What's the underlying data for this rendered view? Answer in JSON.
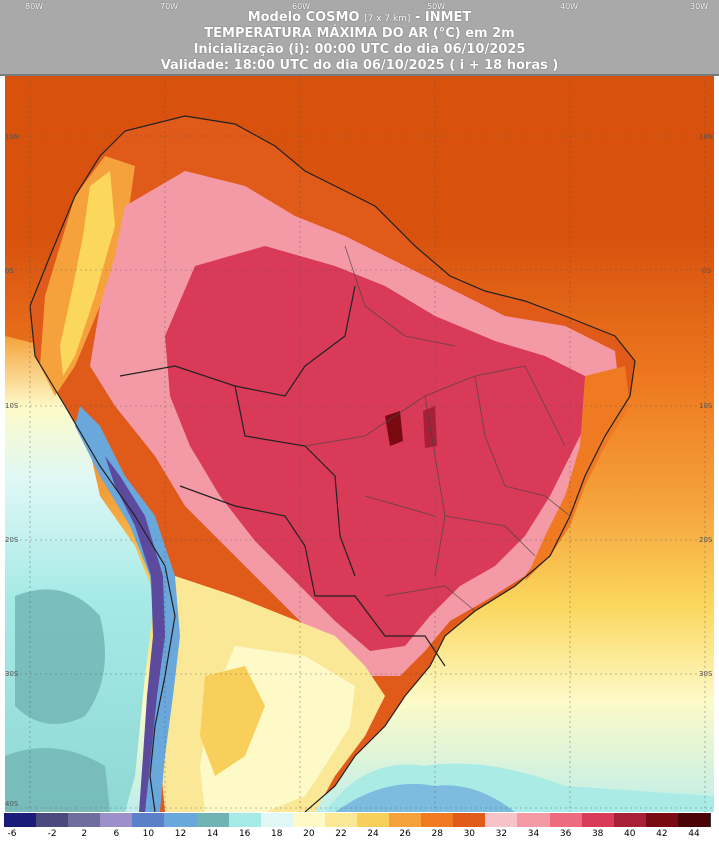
{
  "header": {
    "line1_main": "Modelo COSMO",
    "line1_small": "[7 x 7 km]",
    "line1_tail": " - INMET",
    "line2": "TEMPERATURA MÁXIMA DO AR (°C) em 2m",
    "line3": "Inicialização (i): 00:00 UTC do dia 06/10/2025",
    "line4": "Validade: 18:00 UTC do dia 06/10/2025 ( i + 18 horas )"
  },
  "axes": {
    "longitude_ticks": [
      "80W",
      "70W",
      "60W",
      "50W",
      "40W",
      "30W"
    ],
    "latitude_ticks": [
      "10N",
      "0S",
      "10S",
      "20S",
      "30S",
      "40S"
    ]
  },
  "legend": {
    "values": [
      "-6",
      "-2",
      "2",
      "6",
      "10",
      "12",
      "14",
      "16",
      "18",
      "20",
      "22",
      "24",
      "26",
      "28",
      "30",
      "32",
      "34",
      "36",
      "38",
      "40",
      "42",
      "44"
    ],
    "colors": [
      "#1b1b7a",
      "#4a4a7e",
      "#6e6e9e",
      "#9d8fc9",
      "#5c80c8",
      "#6aa8dc",
      "#6fb3b3",
      "#a6eae6",
      "#dff8f6",
      "#fdfac8",
      "#fbe897",
      "#f8cf5a",
      "#f5a23c",
      "#ef7a22",
      "#e05a1a",
      "#f7c3c8",
      "#f49aa6",
      "#ee6a7e",
      "#d83a58",
      "#a81f38",
      "#7a0a12",
      "#4a0408"
    ]
  },
  "colors": {
    "ocean_north": "#d8520e",
    "ocean_mid": "#ee7a20",
    "ocean_south": "#fbd75e",
    "pacific_cool": "#a6eae6",
    "pacific_teal": "#6fb3b3",
    "interior_hot": "#d83a58",
    "interior_pink": "#f49aa6",
    "andes_cold": "#5c80c8"
  }
}
